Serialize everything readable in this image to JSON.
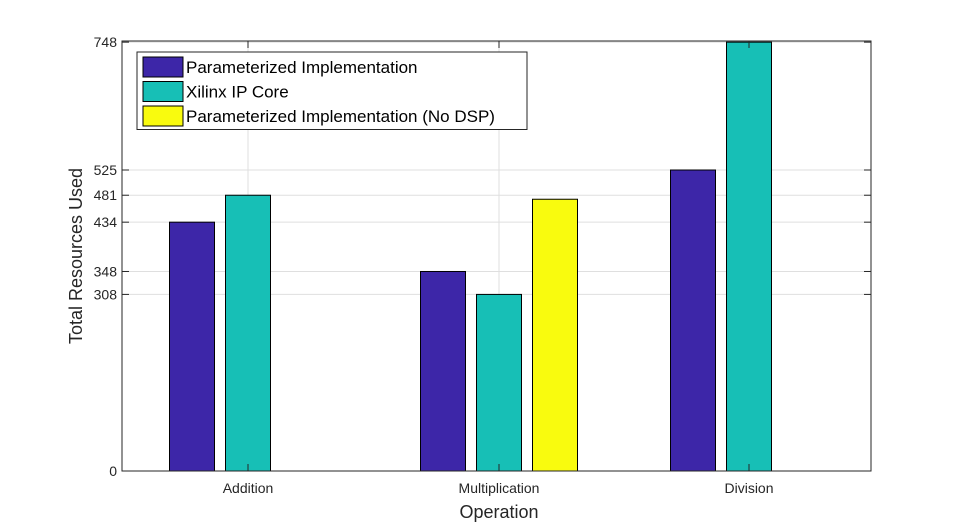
{
  "chart_data": {
    "type": "bar",
    "categories": [
      "Addition",
      "Multiplication",
      "Division"
    ],
    "series": [
      {
        "name": "Parameterized Implementation",
        "color": "#3d26a8",
        "values": [
          434,
          348,
          525
        ]
      },
      {
        "name": "Xilinx IP Core",
        "color": "#17bfb6",
        "values": [
          481,
          308,
          748
        ]
      },
      {
        "name": "Parameterized Implementation (No DSP)",
        "color": "#f9fb0e",
        "values": [
          null,
          474,
          null
        ]
      }
    ],
    "xlabel": "Operation",
    "ylabel": "Total Resources Used",
    "ylim": [
      0,
      750
    ],
    "yticks": [
      0,
      308,
      348,
      434,
      481,
      525,
      748
    ],
    "grid": true,
    "legend": "top-left"
  }
}
